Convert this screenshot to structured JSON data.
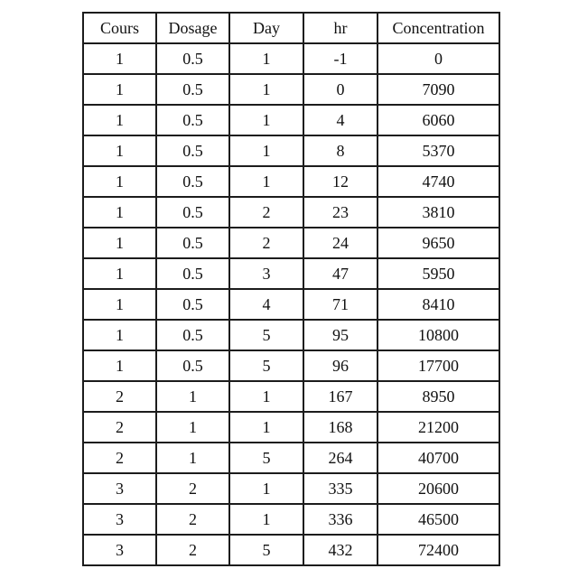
{
  "table": {
    "headers": [
      "Cours",
      "Dosage",
      "Day",
      "hr",
      "Concentration"
    ],
    "rows": [
      [
        "1",
        "0.5",
        "1",
        "-1",
        "0"
      ],
      [
        "1",
        "0.5",
        "1",
        "0",
        "7090"
      ],
      [
        "1",
        "0.5",
        "1",
        "4",
        "6060"
      ],
      [
        "1",
        "0.5",
        "1",
        "8",
        "5370"
      ],
      [
        "1",
        "0.5",
        "1",
        "12",
        "4740"
      ],
      [
        "1",
        "0.5",
        "2",
        "23",
        "3810"
      ],
      [
        "1",
        "0.5",
        "2",
        "24",
        "9650"
      ],
      [
        "1",
        "0.5",
        "3",
        "47",
        "5950"
      ],
      [
        "1",
        "0.5",
        "4",
        "71",
        "8410"
      ],
      [
        "1",
        "0.5",
        "5",
        "95",
        "10800"
      ],
      [
        "1",
        "0.5",
        "5",
        "96",
        "17700"
      ],
      [
        "2",
        "1",
        "1",
        "167",
        "8950"
      ],
      [
        "2",
        "1",
        "1",
        "168",
        "21200"
      ],
      [
        "2",
        "1",
        "5",
        "264",
        "40700"
      ],
      [
        "3",
        "2",
        "1",
        "335",
        "20600"
      ],
      [
        "3",
        "2",
        "1",
        "336",
        "46500"
      ],
      [
        "3",
        "2",
        "5",
        "432",
        "72400"
      ]
    ]
  },
  "colors": {
    "background": "#ffffff",
    "border": "#1c1c1c",
    "text": "#111111"
  }
}
